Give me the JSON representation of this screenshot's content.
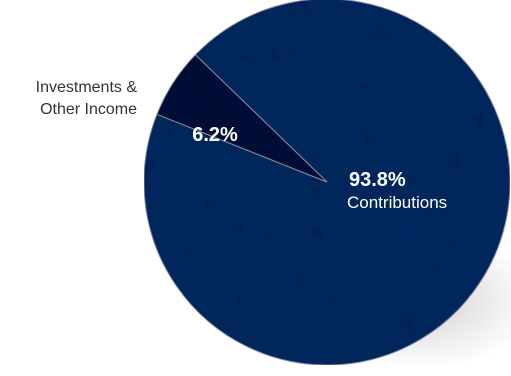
{
  "chart_data": {
    "type": "pie",
    "categories": [
      "Contributions",
      "Investments & Other Income"
    ],
    "values": [
      93.8,
      6.2
    ],
    "value_labels": [
      "93.8%",
      "6.2%"
    ],
    "category_lines": [
      [
        "Contributions"
      ],
      [
        "Investments &",
        "Other Income"
      ]
    ],
    "colors": [
      "#0f2a62",
      "#0b163a"
    ],
    "edge_color": "#8a93a8",
    "background": "#ffffff"
  }
}
